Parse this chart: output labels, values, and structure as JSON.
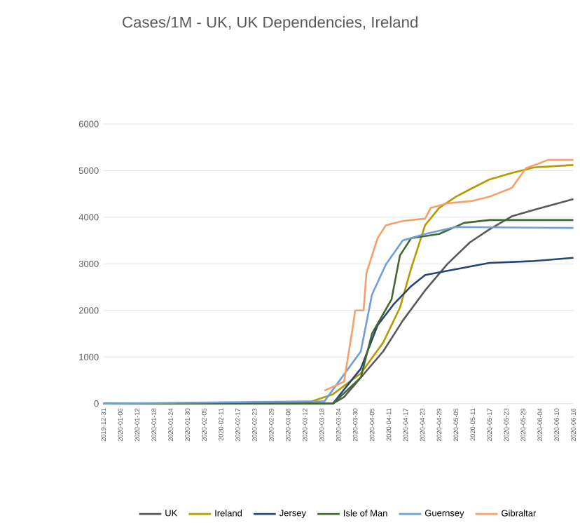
{
  "chart_data": {
    "type": "line",
    "title": "Cases/1M - UK, UK Dependencies, Ireland",
    "xlim": [
      "2019-12-31",
      "2020-06-16"
    ],
    "xticks": [
      "2019-12-31",
      "2020-01-06",
      "2020-01-12",
      "2020-01-18",
      "2020-01-24",
      "2020-01-30",
      "2020-02-05",
      "2020-02-11",
      "2020-02-17",
      "2020-02-23",
      "2020-02-29",
      "2020-03-06",
      "2020-03-12",
      "2020-03-18",
      "2020-03-24",
      "2020-03-30",
      "2020-04-05",
      "2020-04-11",
      "2020-04-17",
      "2020-04-23",
      "2020-04-29",
      "2020-05-05",
      "2020-05-11",
      "2020-05-17",
      "2020-05-23",
      "2020-05-29",
      "2020-06-04",
      "2020-06-10",
      "2020-06-16"
    ],
    "ylim": [
      0,
      6000
    ],
    "yticks": [
      0,
      1000,
      2000,
      3000,
      4000,
      5000,
      6000
    ],
    "grid": "y",
    "legend": "bottom",
    "series": [
      {
        "name": "UK",
        "color": "#595959",
        "x": [
          "2019-12-31",
          "2020-03-22",
          "2020-03-26",
          "2020-04-01",
          "2020-04-09",
          "2020-04-16",
          "2020-04-24",
          "2020-05-02",
          "2020-05-10",
          "2020-05-17",
          "2020-05-25",
          "2020-06-02",
          "2020-06-16"
        ],
        "values": [
          0,
          0,
          140,
          560,
          1120,
          1780,
          2430,
          3000,
          3460,
          3740,
          4020,
          4160,
          4390
        ]
      },
      {
        "name": "Ireland",
        "color": "#b59a00",
        "x": [
          "2019-12-31",
          "2020-03-12",
          "2020-03-22",
          "2020-04-01",
          "2020-04-09",
          "2020-04-15",
          "2020-04-19",
          "2020-04-24",
          "2020-04-29",
          "2020-05-05",
          "2020-05-11",
          "2020-05-17",
          "2020-05-25",
          "2020-06-02",
          "2020-06-16"
        ],
        "values": [
          0,
          0,
          200,
          650,
          1310,
          2060,
          2900,
          3830,
          4200,
          4440,
          4630,
          4810,
          4950,
          5070,
          5120
        ]
      },
      {
        "name": "Jersey",
        "color": "#264478",
        "x": [
          "2019-12-31",
          "2020-03-22",
          "2020-04-01",
          "2020-04-07",
          "2020-04-13",
          "2020-04-19",
          "2020-04-24",
          "2020-05-02",
          "2020-05-10",
          "2020-05-17",
          "2020-06-02",
          "2020-06-16"
        ],
        "values": [
          0,
          0,
          750,
          1680,
          2150,
          2520,
          2760,
          2850,
          2940,
          3020,
          3060,
          3130
        ]
      },
      {
        "name": "Isle of Man",
        "color": "#43682b",
        "x": [
          "2019-12-31",
          "2020-03-22",
          "2020-04-01",
          "2020-04-05",
          "2020-04-12",
          "2020-04-15",
          "2020-04-19",
          "2020-04-29",
          "2020-05-08",
          "2020-05-17",
          "2020-06-16"
        ],
        "values": [
          0,
          0,
          560,
          1500,
          2240,
          3180,
          3550,
          3640,
          3880,
          3940,
          3940
        ]
      },
      {
        "name": "Guernsey",
        "color": "#6f9fd8",
        "x": [
          "2019-12-31",
          "2020-03-19",
          "2020-04-01",
          "2020-04-05",
          "2020-04-10",
          "2020-04-16",
          "2020-04-24",
          "2020-05-05",
          "2020-06-16"
        ],
        "values": [
          0,
          50,
          1120,
          2340,
          2990,
          3500,
          3640,
          3790,
          3770
        ]
      },
      {
        "name": "Gibraltar",
        "color": "#f4a06b",
        "x": [
          "2020-03-19",
          "2020-03-26",
          "2020-03-29",
          "2020-03-30",
          "2020-04-02",
          "2020-04-03",
          "2020-04-07",
          "2020-04-10",
          "2020-04-16",
          "2020-04-24",
          "2020-04-26",
          "2020-05-02",
          "2020-05-11",
          "2020-05-17",
          "2020-05-25",
          "2020-05-30",
          "2020-06-07",
          "2020-06-16"
        ],
        "values": [
          280,
          470,
          1590,
          2000,
          2000,
          2800,
          3550,
          3830,
          3920,
          3970,
          4200,
          4300,
          4350,
          4440,
          4630,
          5050,
          5230,
          5230
        ]
      }
    ]
  }
}
